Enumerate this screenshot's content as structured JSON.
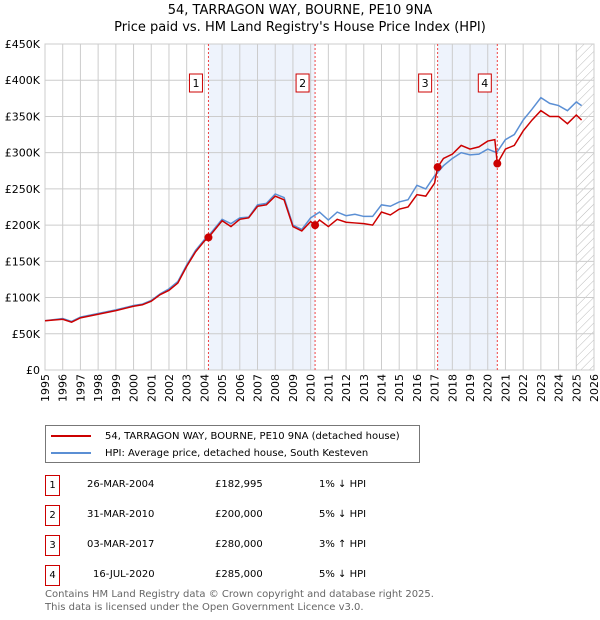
{
  "title": "54, TARRAGON WAY, BOURNE, PE10 9NA",
  "subtitle": "Price paid vs. HM Land Registry's House Price Index (HPI)",
  "chart_data": {
    "type": "line",
    "xlim": [
      1995,
      2026
    ],
    "ylim": [
      0,
      450000
    ],
    "yticks": [
      {
        "v": 0,
        "label": "£0"
      },
      {
        "v": 50000,
        "label": "£50K"
      },
      {
        "v": 100000,
        "label": "£100K"
      },
      {
        "v": 150000,
        "label": "£150K"
      },
      {
        "v": 200000,
        "label": "£200K"
      },
      {
        "v": 250000,
        "label": "£250K"
      },
      {
        "v": 300000,
        "label": "£300K"
      },
      {
        "v": 350000,
        "label": "£350K"
      },
      {
        "v": 400000,
        "label": "£400K"
      },
      {
        "v": 450000,
        "label": "£450K"
      }
    ],
    "xticks": [
      "1995",
      "1996",
      "1997",
      "1998",
      "1999",
      "2000",
      "2001",
      "2002",
      "2003",
      "2004",
      "2005",
      "2006",
      "2007",
      "2008",
      "2009",
      "2010",
      "2011",
      "2012",
      "2013",
      "2014",
      "2015",
      "2016",
      "2017",
      "2018",
      "2019",
      "2020",
      "2021",
      "2022",
      "2023",
      "2024",
      "2025",
      "2026"
    ],
    "grid": true,
    "shaded_periods": [
      [
        2004.23,
        2010.25
      ],
      [
        2017.17,
        2020.54
      ]
    ],
    "hatched_from": 2025.0,
    "series": [
      {
        "name": "54, TARRAGON WAY, BOURNE, PE10 9NA (detached house)",
        "color": "#cc0000",
        "x": [
          1995,
          1996,
          1996.5,
          1997,
          1998,
          1999,
          2000,
          2000.5,
          2001,
          2001.5,
          2002,
          2002.5,
          2003,
          2003.5,
          2004,
          2004.23,
          2005,
          2005.5,
          2006,
          2006.5,
          2007,
          2007.5,
          2008,
          2008.5,
          2009,
          2009.5,
          2010,
          2010.25,
          2010.5,
          2011,
          2011.5,
          2012,
          2012.5,
          2013,
          2013.5,
          2014,
          2014.5,
          2015,
          2015.5,
          2016,
          2016.5,
          2017,
          2017.17,
          2017.5,
          2018,
          2018.5,
          2019,
          2019.5,
          2020,
          2020.4,
          2020.54,
          2021,
          2021.5,
          2022,
          2022.5,
          2023,
          2023.5,
          2024,
          2024.5,
          2025,
          2025.3
        ],
        "y": [
          68000,
          70000,
          66000,
          72000,
          77000,
          82000,
          88000,
          90000,
          95000,
          104000,
          110000,
          120000,
          143000,
          163000,
          178000,
          182995,
          206000,
          198000,
          208000,
          210000,
          226000,
          228000,
          240000,
          235000,
          198000,
          192000,
          205000,
          200000,
          207000,
          198000,
          208000,
          204000,
          203000,
          202000,
          200000,
          218000,
          214000,
          222000,
          225000,
          242000,
          240000,
          258000,
          280000,
          292000,
          298000,
          310000,
          305000,
          308000,
          316000,
          318000,
          285000,
          305000,
          310000,
          330000,
          345000,
          358000,
          350000,
          350000,
          340000,
          352000,
          345000
        ]
      },
      {
        "name": "HPI: Average price, detached house, South Kesteven",
        "color": "#5b8fd4",
        "x": [
          1995,
          1996,
          1996.5,
          1997,
          1998,
          1999,
          2000,
          2000.5,
          2001,
          2001.5,
          2002,
          2002.5,
          2003,
          2003.5,
          2004,
          2004.23,
          2005,
          2005.5,
          2006,
          2006.5,
          2007,
          2007.5,
          2008,
          2008.5,
          2009,
          2009.5,
          2010,
          2010.5,
          2011,
          2011.5,
          2012,
          2012.5,
          2013,
          2013.5,
          2014,
          2014.5,
          2015,
          2015.5,
          2016,
          2016.5,
          2017,
          2017.5,
          2018,
          2018.5,
          2019,
          2019.5,
          2020,
          2020.5,
          2021,
          2021.5,
          2022,
          2022.5,
          2023,
          2023.5,
          2024,
          2024.5,
          2025,
          2025.3
        ],
        "y": [
          68000,
          71000,
          67000,
          73000,
          78000,
          83000,
          89000,
          91000,
          96000,
          105000,
          112000,
          122000,
          145000,
          165000,
          180000,
          185000,
          208000,
          202000,
          210000,
          211000,
          228000,
          230000,
          243000,
          238000,
          200000,
          194000,
          210000,
          218000,
          207000,
          218000,
          213000,
          215000,
          212000,
          212000,
          228000,
          226000,
          232000,
          235000,
          255000,
          250000,
          268000,
          282000,
          292000,
          300000,
          297000,
          298000,
          305000,
          300000,
          318000,
          325000,
          345000,
          360000,
          376000,
          368000,
          365000,
          358000,
          370000,
          365000
        ]
      }
    ],
    "sales": [
      {
        "num": "1",
        "x": 2004.23,
        "date": "26-MAR-2004",
        "price": "£182,995",
        "value": 182995,
        "hpi": "1% ↓ HPI"
      },
      {
        "num": "2",
        "x": 2010.25,
        "date": "31-MAR-2010",
        "price": "£200,000",
        "value": 200000,
        "hpi": "5% ↓ HPI"
      },
      {
        "num": "3",
        "x": 2017.17,
        "date": "03-MAR-2017",
        "price": "£280,000",
        "value": 280000,
        "hpi": "3% ↑ HPI"
      },
      {
        "num": "4",
        "x": 2020.54,
        "date": "16-JUL-2020",
        "price": "£285,000",
        "value": 285000,
        "hpi": "5% ↓ HPI"
      }
    ]
  },
  "footer": [
    "Contains HM Land Registry data © Crown copyright and database right 2025.",
    "This data is licensed under the Open Government Licence v3.0."
  ]
}
